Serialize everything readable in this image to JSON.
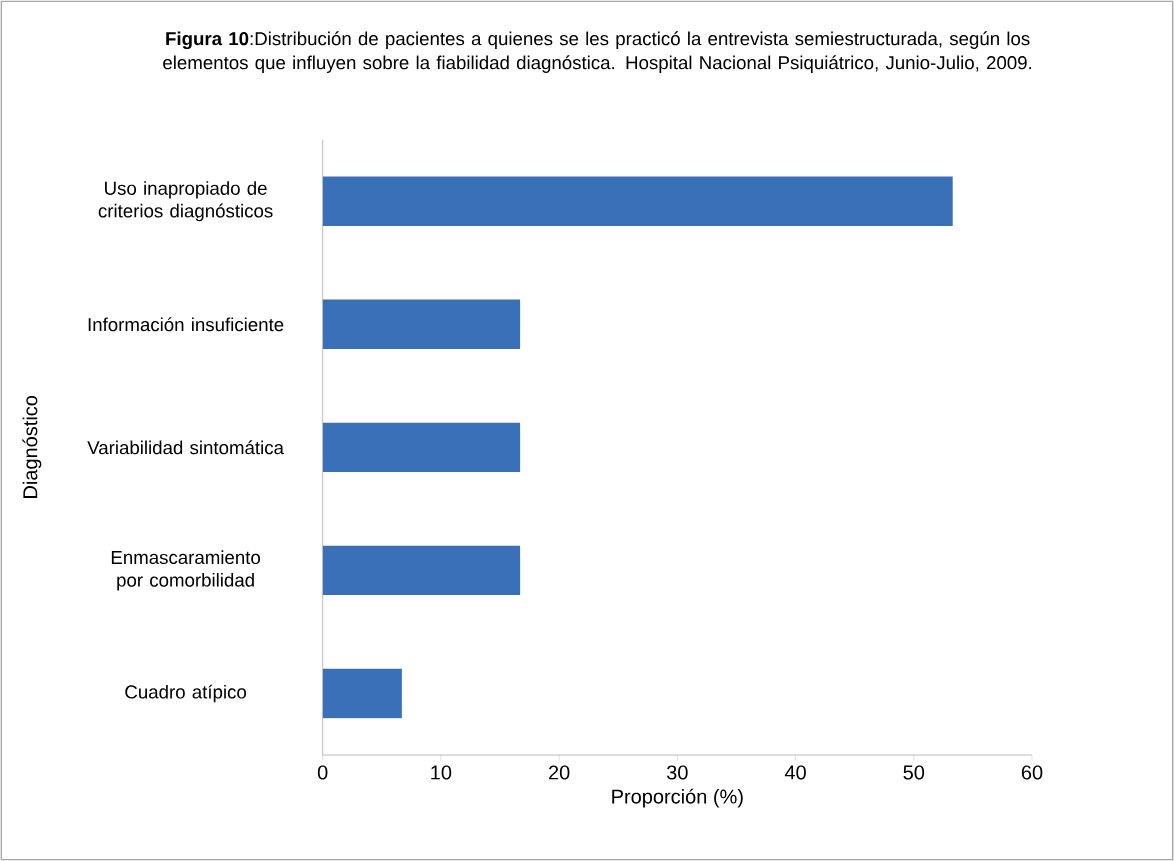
{
  "chart_data": {
    "type": "bar",
    "orientation": "horizontal",
    "title": "**Figura 10**:Distribución de pacientes a quienes se les practicó la entrevista semiestructurada, según los elementos que influyen sobre la fiabilidad diagnóstica. Hospital Nacional Psiquiátrico, Junio-Julio, 2009.",
    "categories": [
      "Uso inapropiado de criterios diagnósticos",
      "Información insuficiente",
      "Variabilidad sintomática",
      "Enmascaramiento por comorbilidad",
      "Cuadro atípico"
    ],
    "values": [
      53.3,
      16.7,
      16.7,
      16.7,
      6.7
    ],
    "color": "#3a70b8",
    "xlabel": "Proporción (%)",
    "ylabel": "Diagnóstico",
    "xlim": [
      0,
      60
    ],
    "xticks": [
      0,
      10,
      20,
      30,
      40,
      50,
      60
    ],
    "grid": false
  }
}
